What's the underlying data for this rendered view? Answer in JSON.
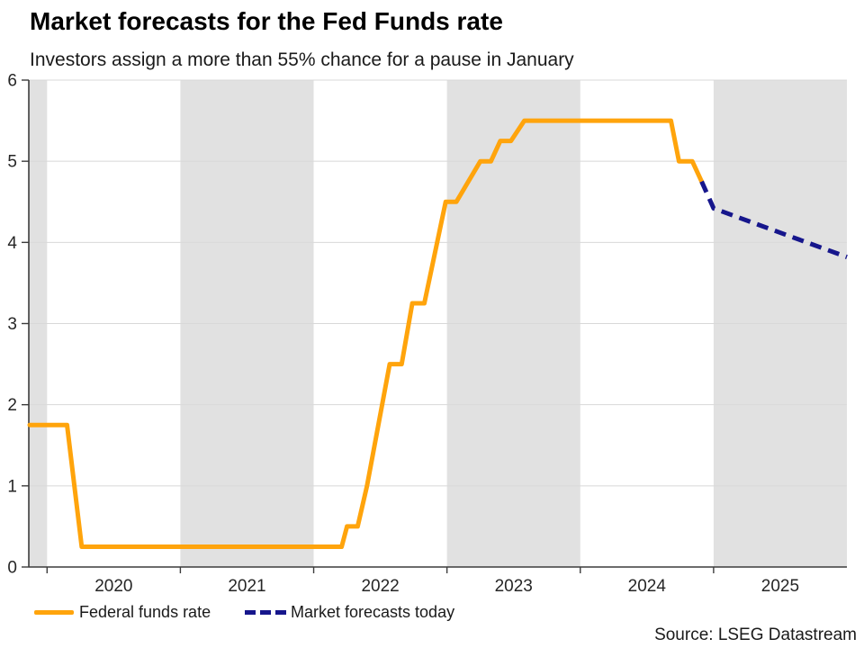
{
  "header": {
    "title": "Market forecasts for the Fed Funds rate",
    "subtitle": "Investors assign a more than 55% chance for a pause in January"
  },
  "source": "Source: LSEG Datastream",
  "colors": {
    "orange": "#FFA40C",
    "navy": "#16168C",
    "band": "#E1E1E1",
    "grid": "#D8D8D8",
    "axis": "#3C3C3C",
    "tick_text": "#262626"
  },
  "legend": {
    "items": [
      {
        "label": "Federal funds rate",
        "color": "#FFA40C",
        "style": "solid"
      },
      {
        "label": "Market forecasts today",
        "color": "#16168C",
        "style": "dashed"
      }
    ]
  },
  "chart_data": {
    "type": "line",
    "title": "Market forecasts for the Fed Funds rate",
    "subtitle": "Investors assign a more than 55% chance for a pause in January",
    "xlabel": "",
    "ylabel": "",
    "grid": true,
    "legend_position": "bottom-left",
    "x_axis": {
      "range": [
        2019.863,
        2026.0
      ],
      "year_boundaries": [
        2020,
        2021,
        2022,
        2023,
        2024,
        2025
      ],
      "tick_labels": [
        "2020",
        "2021",
        "2022",
        "2023",
        "2024",
        "2025"
      ],
      "label_centers": [
        2020.5,
        2021.5,
        2022.5,
        2023.5,
        2024.5,
        2025.5
      ]
    },
    "y_axis": {
      "range": [
        0,
        6
      ],
      "ticks": [
        0,
        1,
        2,
        3,
        4,
        5,
        6
      ],
      "tick_labels": [
        "0",
        "1",
        "2",
        "3",
        "4",
        "5",
        "6"
      ]
    },
    "shaded_periods": [
      [
        2019.863,
        2020.0
      ],
      [
        2021.0,
        2022.0
      ],
      [
        2023.0,
        2024.0
      ],
      [
        2025.0,
        2026.0
      ]
    ],
    "series": [
      {
        "name": "Federal funds rate",
        "color": "#FFA40C",
        "line_style": "solid",
        "points": [
          [
            2019.87,
            1.75
          ],
          [
            2020.15,
            1.75
          ],
          [
            2020.26,
            0.25
          ],
          [
            2022.21,
            0.25
          ],
          [
            2022.25,
            0.5
          ],
          [
            2022.33,
            0.5
          ],
          [
            2022.4,
            1.0
          ],
          [
            2022.57,
            2.5
          ],
          [
            2022.66,
            2.5
          ],
          [
            2022.74,
            3.25
          ],
          [
            2022.83,
            3.25
          ],
          [
            2022.99,
            4.5
          ],
          [
            2023.07,
            4.5
          ],
          [
            2023.25,
            5.0
          ],
          [
            2023.33,
            5.0
          ],
          [
            2023.4,
            5.25
          ],
          [
            2023.48,
            5.25
          ],
          [
            2023.58,
            5.5
          ],
          [
            2024.68,
            5.5
          ],
          [
            2024.74,
            5.0
          ],
          [
            2024.84,
            5.0
          ],
          [
            2024.91,
            4.75
          ]
        ]
      },
      {
        "name": "Market forecasts today",
        "color": "#16168C",
        "line_style": "dashed",
        "points": [
          [
            2024.91,
            4.75
          ],
          [
            2025.0,
            4.42
          ],
          [
            2026.0,
            3.82
          ]
        ]
      }
    ]
  }
}
